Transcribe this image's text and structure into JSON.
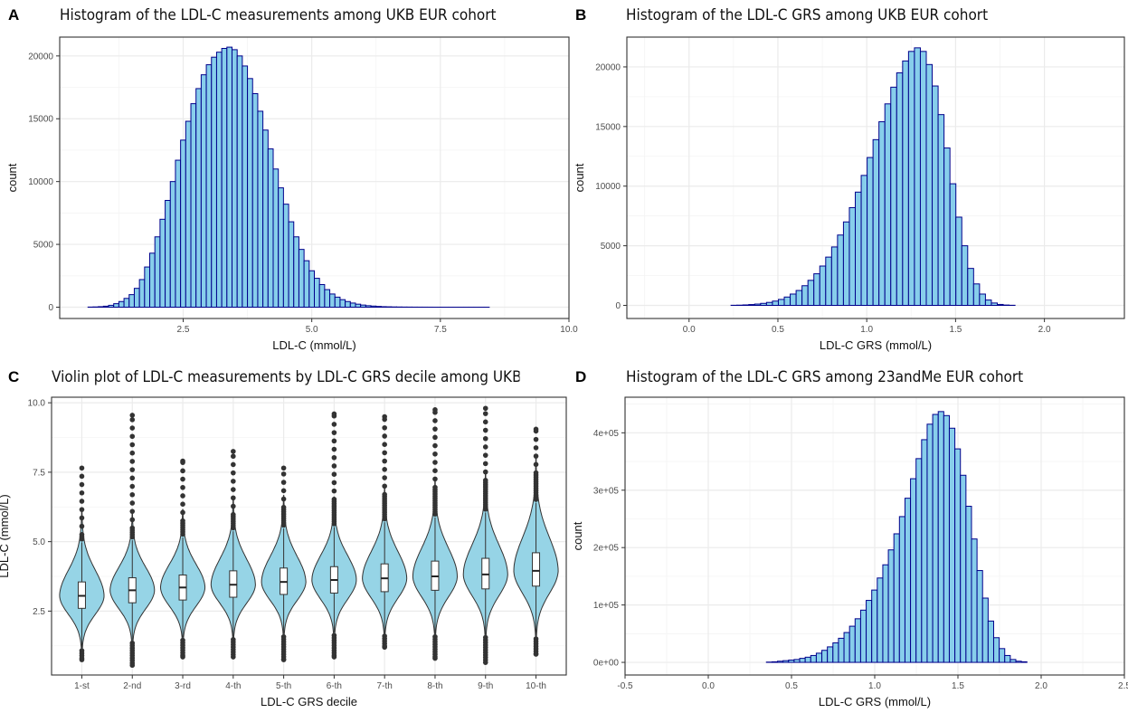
{
  "panels": {
    "a": {
      "letter": "A"
    },
    "b": {
      "letter": "B"
    },
    "c": {
      "letter": "C"
    },
    "d": {
      "letter": "D"
    }
  },
  "style": {
    "bar_fill": "#87CEEB",
    "bar_stroke": "#00008B",
    "violin_fill": "#96D4E6",
    "grid": "#ebebeb",
    "grid_minor": "#f4f4f4",
    "panel_border": "#333333",
    "text": "#4d4d4d"
  },
  "chart_data": [
    {
      "type": "bar",
      "panel": "a",
      "title": "Histogram of the LDL-C measurements among UKB EUR cohort",
      "xlabel": "LDL-C (mmol/L)",
      "ylabel": "count",
      "xlim": [
        0.1,
        10.0
      ],
      "ylim": [
        -900,
        21500
      ],
      "xticks": [
        2.5,
        5.0,
        7.5,
        10.0
      ],
      "xtick_labels": [
        "2.5",
        "5.0",
        "7.5",
        "10.0"
      ],
      "yticks": [
        0,
        5000,
        10000,
        15000,
        20000
      ],
      "ytick_labels": [
        "0",
        "5000",
        "10000",
        "15000",
        "20000"
      ],
      "bin_start": 0.55,
      "bin_width": 0.1,
      "counts": [
        0,
        10,
        20,
        40,
        80,
        150,
        280,
        450,
        700,
        1000,
        1500,
        2200,
        3200,
        4300,
        5600,
        7000,
        8500,
        10000,
        11700,
        13300,
        14800,
        16200,
        17400,
        18500,
        19300,
        19900,
        20300,
        20600,
        20700,
        20500,
        20000,
        19200,
        18200,
        17000,
        15600,
        14100,
        12600,
        11000,
        9500,
        8200,
        6800,
        5600,
        4600,
        3700,
        2900,
        2300,
        1800,
        1400,
        1050,
        800,
        600,
        450,
        330,
        240,
        170,
        120,
        90,
        60,
        40,
        30,
        20,
        15,
        10,
        8,
        5,
        4,
        3,
        2,
        1,
        1,
        1,
        1,
        1,
        1,
        1,
        1,
        1,
        1,
        1,
        0,
        0,
        0,
        0,
        0,
        0,
        0,
        0,
        0,
        0,
        0,
        0,
        0,
        0
      ]
    },
    {
      "type": "bar",
      "panel": "b",
      "title": "Histogram of the LDL-C GRS among UKB EUR cohort",
      "xlabel": "LDL-C GRS (mmol/L)",
      "ylabel": "count",
      "xlim": [
        -0.35,
        2.45
      ],
      "ylim": [
        -1100,
        22500
      ],
      "xticks": [
        0.0,
        0.5,
        1.0,
        1.5,
        2.0
      ],
      "xtick_labels": [
        "0.0",
        "0.5",
        "1.0",
        "1.5",
        "2.0"
      ],
      "yticks": [
        0,
        5000,
        10000,
        15000,
        20000
      ],
      "ytick_labels": [
        "0",
        "5000",
        "10000",
        "15000",
        "20000"
      ],
      "bin_start": -0.23,
      "bin_width": 0.0333,
      "counts": [
        0,
        0,
        0,
        0,
        0,
        0,
        0,
        0,
        0,
        0,
        0,
        0,
        0,
        0,
        10,
        20,
        40,
        70,
        110,
        170,
        250,
        360,
        500,
        700,
        950,
        1250,
        1650,
        2100,
        2650,
        3300,
        4050,
        4900,
        5900,
        7000,
        8200,
        9500,
        10900,
        12400,
        13900,
        15400,
        16900,
        18300,
        19500,
        20500,
        21300,
        21600,
        21300,
        20200,
        18400,
        16000,
        13200,
        10200,
        7400,
        5000,
        3100,
        1800,
        950,
        450,
        200,
        80,
        30,
        10,
        0,
        0,
        0,
        0,
        0,
        0,
        0,
        0,
        0,
        0,
        0,
        0,
        0,
        0,
        0,
        0
      ]
    },
    {
      "type": "violin",
      "panel": "c",
      "title": "Violin plot of LDL-C measurements by LDL-C GRS decile among UKB EUR cohort",
      "xlabel": "LDL-C GRS decile",
      "ylabel": "LDL-C (mmol/L)",
      "ylim": [
        0.2,
        10.2
      ],
      "yticks": [
        2.5,
        5.0,
        7.5,
        10.0
      ],
      "ytick_labels": [
        "2.5",
        "5.0",
        "7.5",
        "10.0"
      ],
      "categories": [
        "1-st",
        "2-nd",
        "3-rd",
        "4-th",
        "5-th",
        "6-th",
        "7-th",
        "8-th",
        "9-th",
        "10-th"
      ],
      "medians": [
        3.05,
        3.25,
        3.35,
        3.45,
        3.55,
        3.62,
        3.68,
        3.75,
        3.82,
        3.95
      ],
      "q1": [
        2.6,
        2.8,
        2.9,
        3.0,
        3.1,
        3.15,
        3.2,
        3.25,
        3.3,
        3.4
      ],
      "q3": [
        3.55,
        3.7,
        3.8,
        3.95,
        4.05,
        4.1,
        4.2,
        4.3,
        4.4,
        4.6
      ],
      "max": [
        7.65,
        9.55,
        7.9,
        8.25,
        7.65,
        9.6,
        9.5,
        9.75,
        9.8,
        9.05
      ],
      "min": [
        0.75,
        0.55,
        0.85,
        0.85,
        0.75,
        0.85,
        1.2,
        0.8,
        0.65,
        0.95
      ]
    },
    {
      "type": "bar",
      "panel": "d",
      "title": "Histogram of the LDL-C GRS among 23andMe EUR cohort",
      "xlabel": "LDL-C GRS (mmol/L)",
      "ylabel": "count",
      "xlim": [
        -0.5,
        2.5
      ],
      "ylim": [
        -22000,
        462000
      ],
      "xticks": [
        -0.5,
        0.0,
        0.5,
        1.0,
        1.5,
        2.0,
        2.5
      ],
      "xtick_labels": [
        "-0.5",
        "0.0",
        "0.5",
        "1.0",
        "1.5",
        "2.0",
        "2.5"
      ],
      "yticks": [
        0,
        100000,
        200000,
        300000,
        400000
      ],
      "ytick_labels": [
        "0e+00",
        "1e+05",
        "2e+05",
        "3e+05",
        "4e+05"
      ],
      "bin_start": -0.35,
      "bin_width": 0.0333,
      "counts": [
        0,
        0,
        0,
        0,
        0,
        0,
        0,
        0,
        0,
        0,
        0,
        0,
        0,
        0,
        0,
        0,
        0,
        0,
        0,
        0,
        0,
        500,
        1000,
        2000,
        3000,
        4000,
        5000,
        7000,
        9000,
        12000,
        16000,
        21000,
        27000,
        34000,
        42000,
        52000,
        63000,
        76000,
        91000,
        108000,
        126000,
        147000,
        170000,
        196000,
        224000,
        254000,
        286000,
        320000,
        355000,
        388000,
        415000,
        432000,
        437000,
        430000,
        408000,
        372000,
        326000,
        272000,
        215000,
        160000,
        112000,
        72000,
        43000,
        24000,
        12000,
        5000,
        2000,
        1000,
        0,
        0,
        0,
        0,
        0,
        0,
        0,
        0,
        0,
        0,
        0,
        0,
        0,
        0,
        0,
        0,
        0,
        0,
        0,
        0
      ]
    }
  ]
}
